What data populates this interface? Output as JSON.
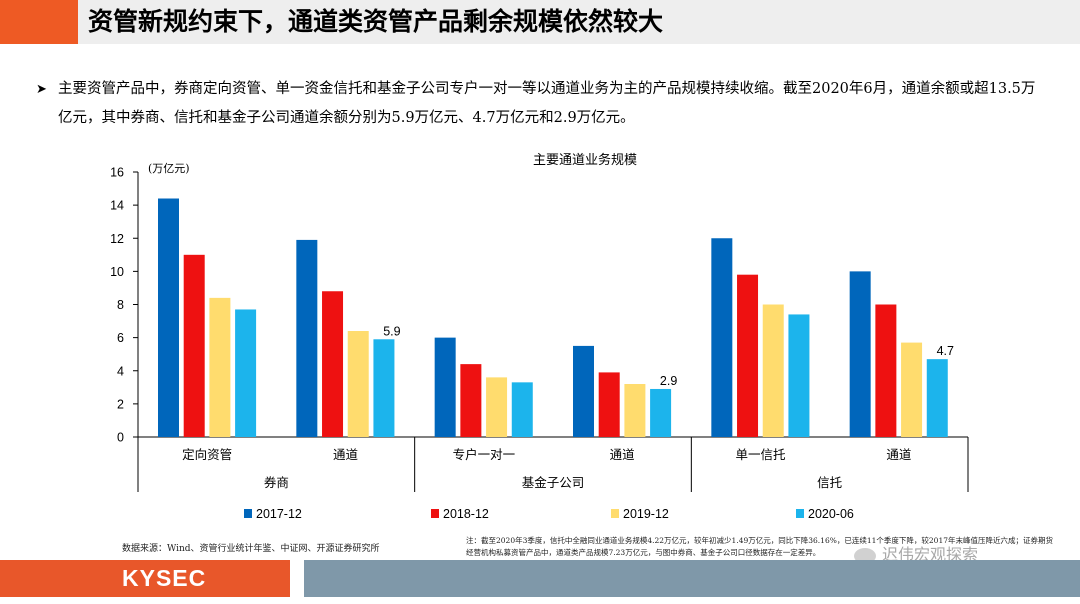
{
  "slide": {
    "title": "资管新规约束下，通道类资管产品剩余规模依然较大",
    "bullet_text": "主要资管产品中，券商定向资管、单一资金信托和基金子公司专户一对一等以通道业务为主的产品规模持续收缩。截至2020年6月，通道余额或超13.5万亿元，其中券商、信托和基金子公司通道余额分别为5.9万亿元、4.7万亿元和2.9万亿元。",
    "source": "数据来源：Wind、资管行业统计年鉴、中证网、开源证券研究所",
    "footnote": "注：截至2020年3季度，信托中全融同业通道业务规模4.22万亿元，较年初减少1.49万亿元，同比下降36.16%，已连续11个季度下降，较2017年末峰值压降近六成；证券期货经营机构私募资管产品中，通道类产品规模7.23万亿元，与图中券商、基金子公司口径数据存在一定差异。",
    "logo_text": "KYSEC",
    "watermark": "迟伟宏观探索"
  },
  "colors": {
    "header_accent": "#ee5a24",
    "footer_logo": "#e8572a",
    "footer_bar": "#7f98a9"
  },
  "chart_data": {
    "type": "bar",
    "title": "主要通道业务规模",
    "ylabel": "(万亿元)",
    "ylim": [
      0,
      16
    ],
    "yticks": [
      0,
      2,
      4,
      6,
      8,
      10,
      12,
      14,
      16
    ],
    "categories": [
      "定向资管",
      "通道",
      "专户一对一",
      "通道",
      "单一信托",
      "通道"
    ],
    "groups": [
      {
        "label": "券商",
        "span": [
          0,
          1
        ]
      },
      {
        "label": "基金子公司",
        "span": [
          2,
          3
        ]
      },
      {
        "label": "信托",
        "span": [
          4,
          5
        ]
      }
    ],
    "series": [
      {
        "name": "2017-12",
        "color": "#0066bb",
        "values": [
          14.4,
          11.9,
          6.0,
          5.5,
          12.0,
          10.0
        ]
      },
      {
        "name": "2018-12",
        "color": "#ee1111",
        "values": [
          11.0,
          8.8,
          4.4,
          3.9,
          9.8,
          8.0
        ]
      },
      {
        "name": "2019-12",
        "color": "#ffdc6e",
        "values": [
          8.4,
          6.4,
          3.6,
          3.2,
          8.0,
          5.7
        ]
      },
      {
        "name": "2020-06",
        "color": "#1cb4ec",
        "values": [
          7.7,
          5.9,
          3.3,
          2.9,
          7.4,
          4.7
        ]
      }
    ],
    "data_labels": [
      {
        "category_index": 1,
        "series_index": 3,
        "text": "5.9"
      },
      {
        "category_index": 3,
        "series_index": 3,
        "text": "2.9"
      },
      {
        "category_index": 5,
        "series_index": 3,
        "text": "4.7"
      }
    ],
    "legend_position": "bottom",
    "grid": false
  }
}
